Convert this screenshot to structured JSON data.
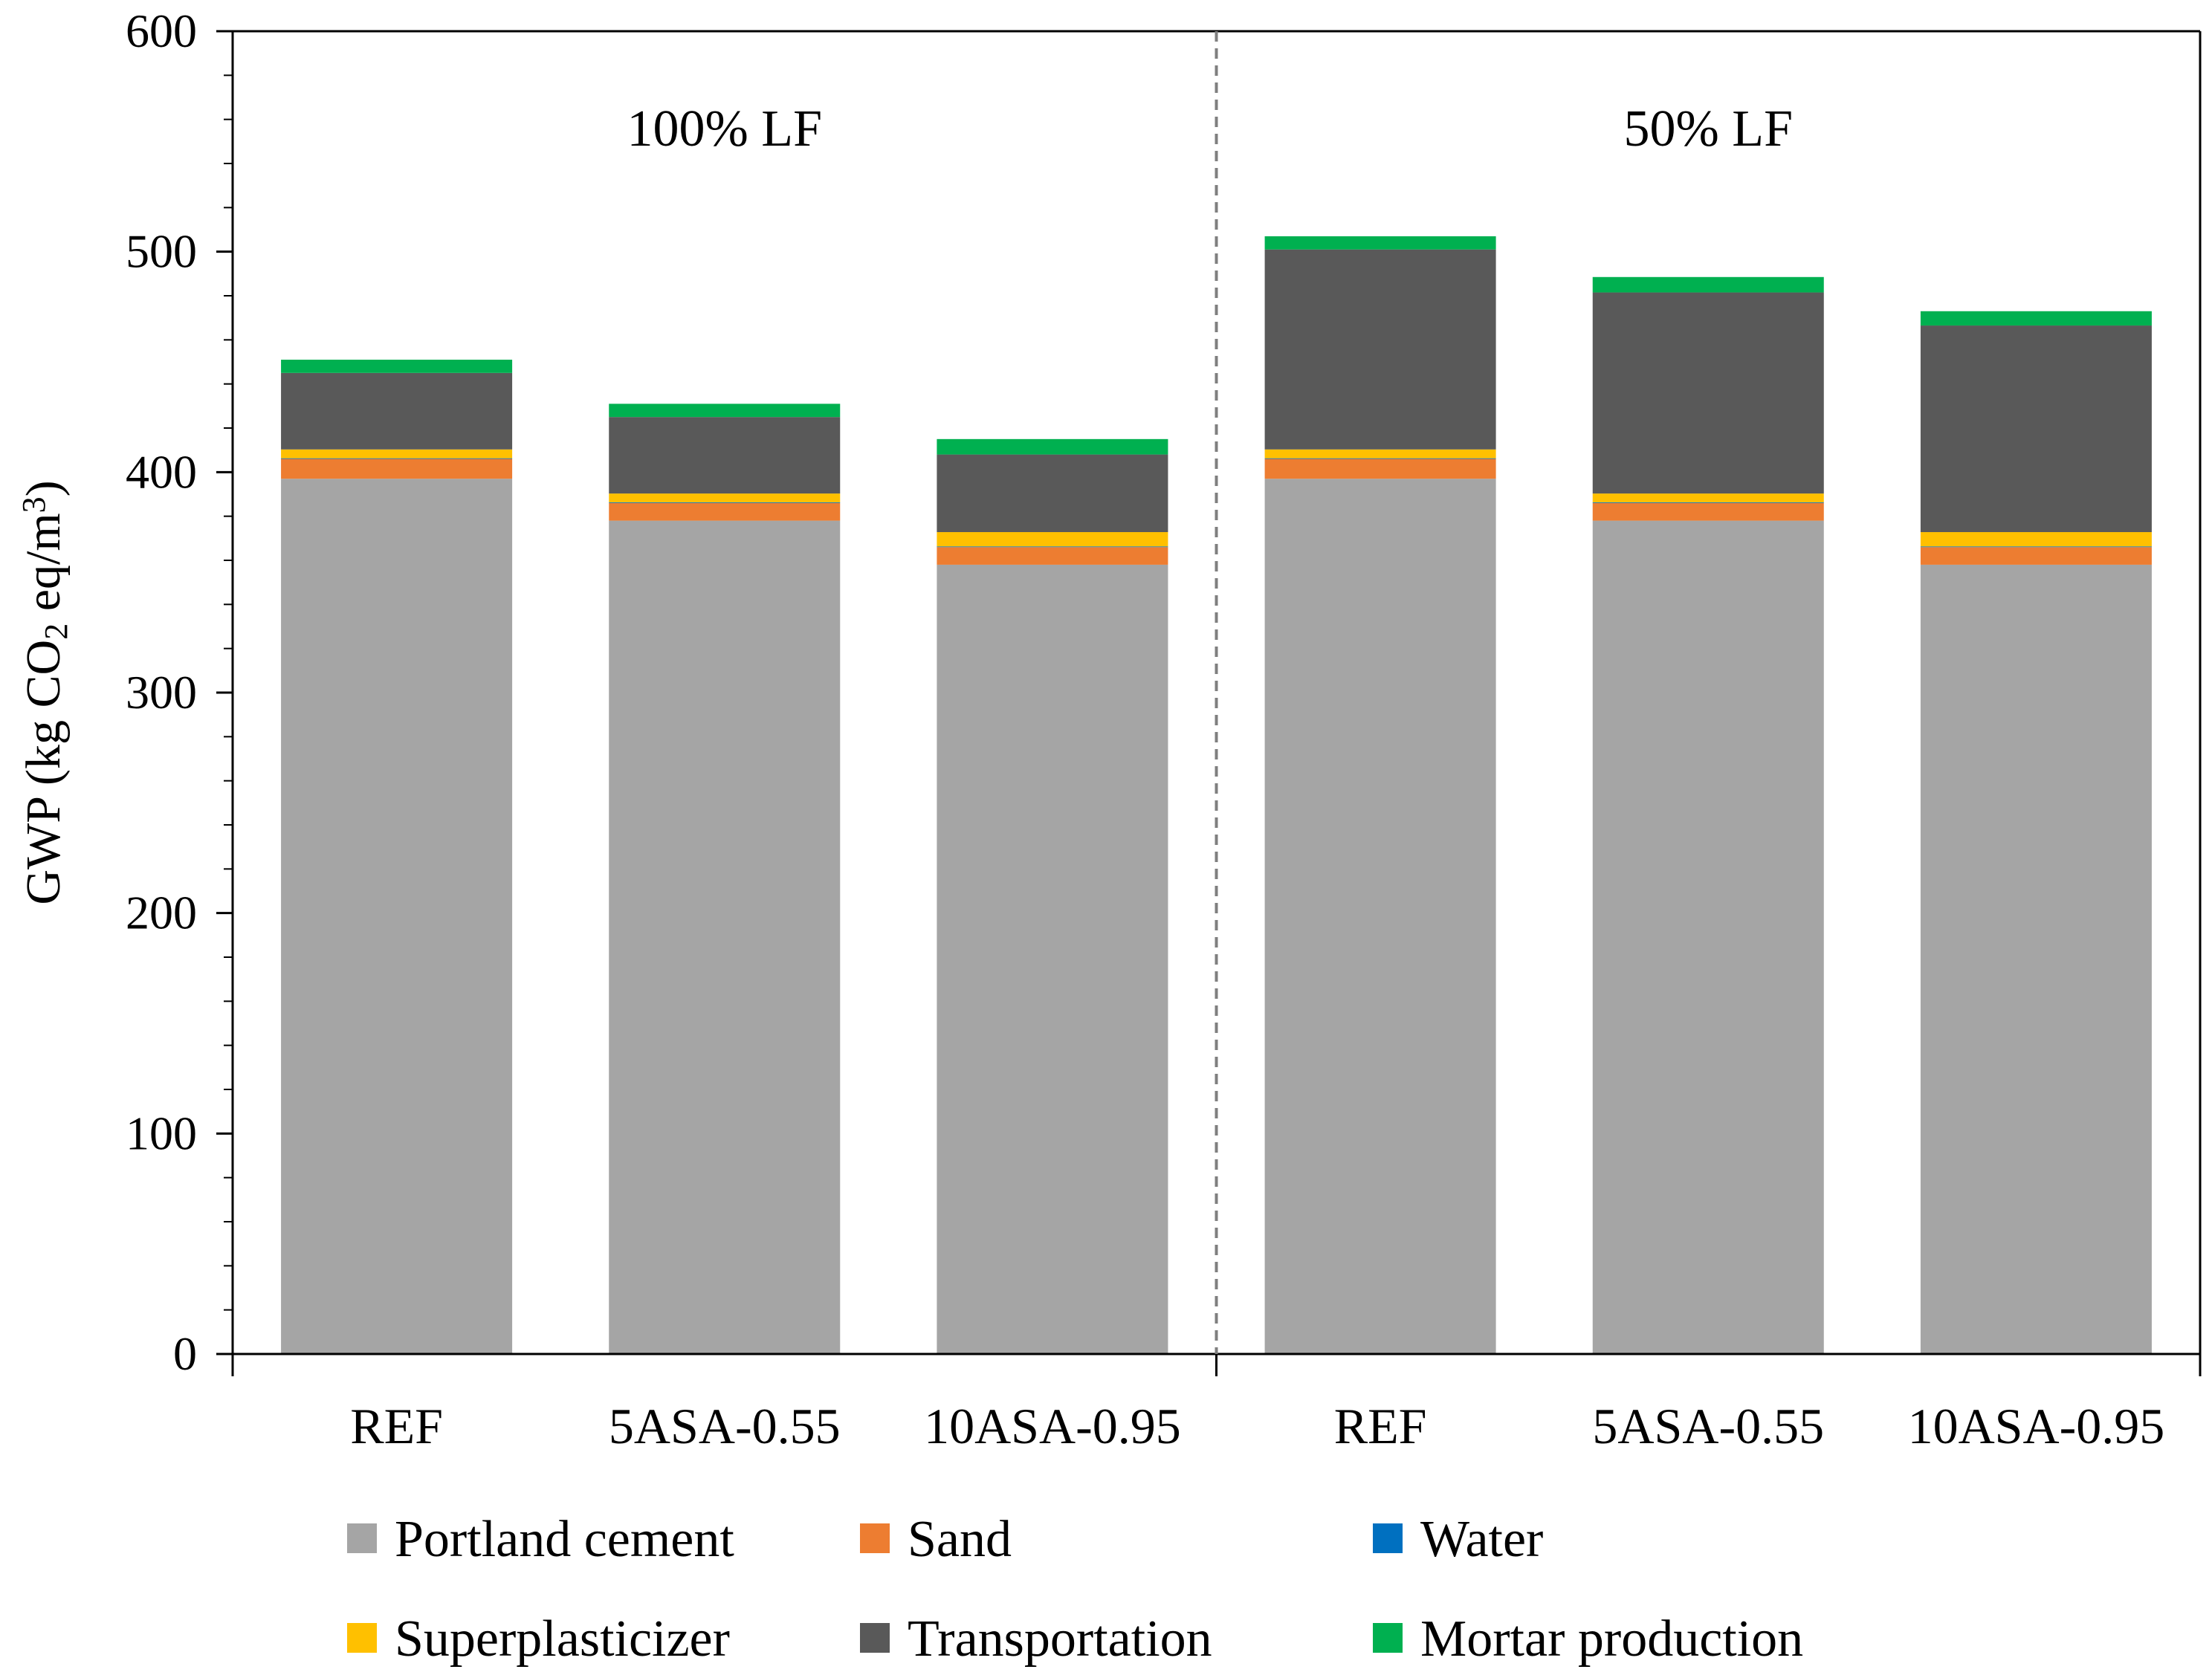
{
  "chart_data": {
    "type": "bar",
    "stacked": true,
    "ylabel_parts": {
      "pre": "GWP (kg CO",
      "sub": "2",
      "mid": " eq/m",
      "sup": "3",
      "post": ")"
    },
    "ylim": [
      0,
      600
    ],
    "yticks": [
      "0",
      "100",
      "200",
      "300",
      "400",
      "500",
      "600"
    ],
    "groups": [
      {
        "label": "100% LF",
        "categories": [
          "REF",
          "5ASA-0.55",
          "10ASA-0.95"
        ]
      },
      {
        "label": "50% LF",
        "categories": [
          "REF",
          "5ASA-0.55",
          "10ASA-0.95"
        ]
      }
    ],
    "categories": [
      "REF",
      "5ASA-0.55",
      "10ASA-0.95",
      "REF",
      "5ASA-0.55",
      "10ASA-0.95"
    ],
    "series": [
      {
        "name": "Portland cement",
        "color": "#a5a5a5",
        "values": [
          397,
          378,
          358,
          397,
          378,
          358
        ]
      },
      {
        "name": "Sand",
        "color": "#ed7d31",
        "values": [
          9,
          8,
          8,
          9,
          8,
          8
        ]
      },
      {
        "name": "Water",
        "color": "#0070c0",
        "values": [
          0.3,
          0.3,
          0.3,
          0.3,
          0.3,
          0.3
        ]
      },
      {
        "name": "Superplasticizer",
        "color": "#ffc000",
        "values": [
          4,
          4,
          6.5,
          4,
          4,
          6.5
        ]
      },
      {
        "name": "Transportation",
        "color": "#595959",
        "values": [
          34.7,
          34.7,
          35.2,
          90.7,
          91.2,
          93.7
        ]
      },
      {
        "name": "Mortar production",
        "color": "#00b050",
        "values": [
          6,
          6,
          7,
          6,
          7,
          6.5
        ]
      }
    ],
    "legend_rows": [
      [
        "Portland cement",
        "Sand",
        "Water"
      ],
      [
        "Superplasticizer",
        "Transportation",
        "Mortar production"
      ]
    ],
    "legend_position": "bottom",
    "grid": false
  }
}
